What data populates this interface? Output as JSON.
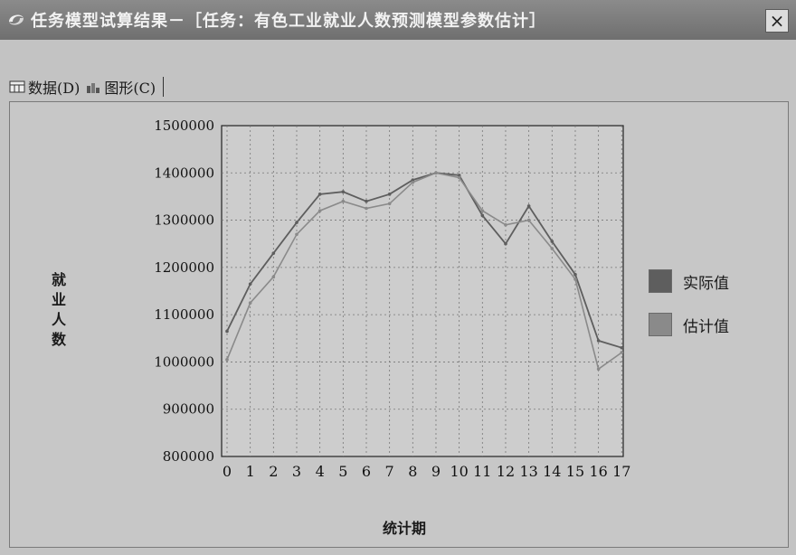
{
  "window": {
    "title": "任务模型试算结果－［任务：有色工业就业人数预测模型参数估计］",
    "close_label": "×"
  },
  "tabs": [
    {
      "label": "数据(D)",
      "icon": "grid-icon"
    },
    {
      "label": "图形(C)",
      "icon": "bar-chart-icon"
    }
  ],
  "chart_data": {
    "type": "line",
    "title": "",
    "xlabel": "统计期",
    "ylabel": "就业人数",
    "categories": [
      "0",
      "1",
      "2",
      "3",
      "4",
      "5",
      "6",
      "7",
      "8",
      "9",
      "10",
      "11",
      "12",
      "13",
      "14",
      "15",
      "16",
      "17"
    ],
    "ylim": [
      800000,
      1500000
    ],
    "yticks": [
      800000,
      900000,
      1000000,
      1100000,
      1200000,
      1300000,
      1400000,
      1500000
    ],
    "grid": true,
    "legend_position": "right",
    "series": [
      {
        "name": "实际值",
        "color": "#5e5e5e",
        "values": [
          1065000,
          1165000,
          1230000,
          1295000,
          1355000,
          1360000,
          1340000,
          1355000,
          1385000,
          1400000,
          1395000,
          1310000,
          1250000,
          1330000,
          1255000,
          1185000,
          1045000,
          1030000
        ]
      },
      {
        "name": "估计值",
        "color": "#8a8a8a",
        "values": [
          1005000,
          1125000,
          1180000,
          1270000,
          1320000,
          1340000,
          1325000,
          1335000,
          1380000,
          1400000,
          1390000,
          1320000,
          1290000,
          1300000,
          1240000,
          1175000,
          985000,
          1020000
        ]
      }
    ]
  }
}
